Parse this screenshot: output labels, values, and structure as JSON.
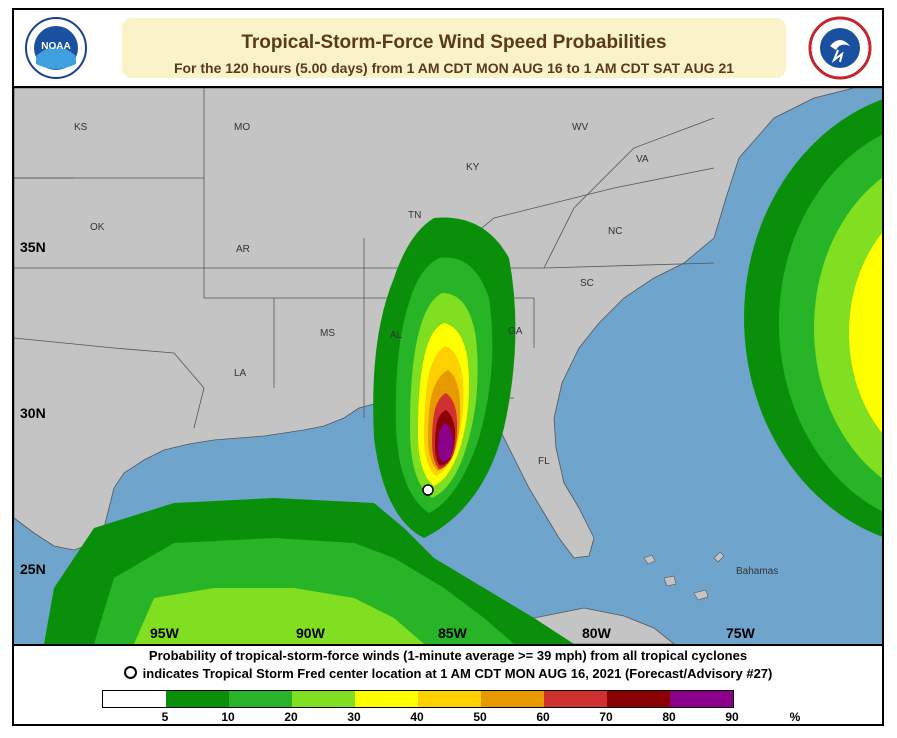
{
  "header": {
    "title": "Tropical-Storm-Force Wind Speed Probabilities",
    "subtitle": "For the 120 hours (5.00 days) from 1 AM CDT MON AUG 16 to 1 AM CDT SAT AUG 21",
    "logo_left_text": "NOAA",
    "logo_right_text": "NATIONAL WEATHER SERVICE"
  },
  "map": {
    "states": [
      "KS",
      "MO",
      "WV",
      "VA",
      "KY",
      "OK",
      "AR",
      "TN",
      "NC",
      "SC",
      "MS",
      "AL",
      "GA",
      "LA",
      "FL"
    ],
    "place_labels": [
      "Bahamas"
    ],
    "lat_labels": [
      "35N",
      "30N",
      "25N"
    ],
    "lon_labels": [
      "95W",
      "90W",
      "85W",
      "80W",
      "75W"
    ],
    "storm_center_marker": "white circle"
  },
  "footer": {
    "line1": "Probability of tropical-storm-force winds (1-minute average >= 39 mph) from all tropical cyclones",
    "line2": "indicates Tropical Storm Fred center location at 1 AM CDT MON AUG 16, 2021 (Forecast/Advisory #27)"
  },
  "legend": {
    "colors": [
      "#ffffff",
      "#0a8f0a",
      "#27b527",
      "#7fdf20",
      "#ffff00",
      "#ffd000",
      "#e69a00",
      "#d03030",
      "#8b0000",
      "#8b008b"
    ],
    "labels": [
      "5",
      "10",
      "20",
      "30",
      "40",
      "50",
      "60",
      "70",
      "80",
      "90",
      "%"
    ]
  },
  "colors": {
    "ocean": "#6fa5cc",
    "land": "#c4c4c4",
    "title_text": "#5a3a1a",
    "title_band": "#faf2c8"
  }
}
